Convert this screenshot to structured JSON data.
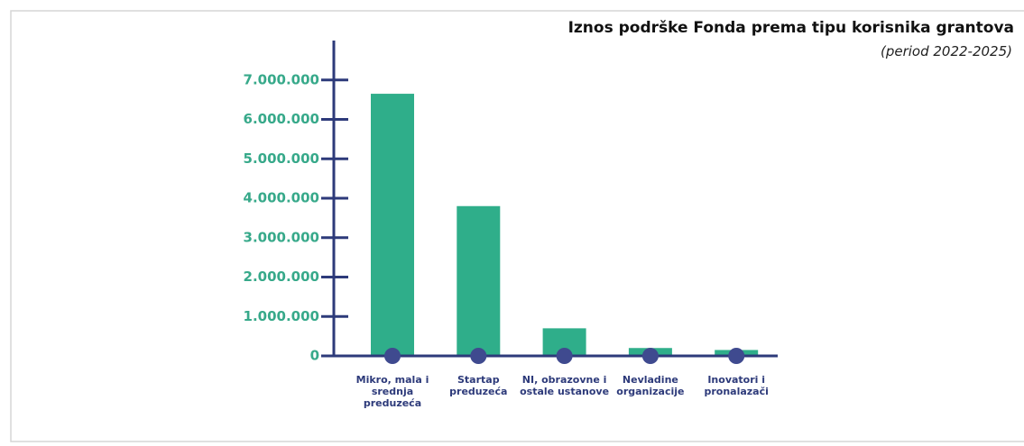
{
  "chart_data": {
    "type": "bar",
    "title": "Iznos podrške Fonda prema tipu korisnika grantova",
    "subtitle": "(period 2022-2025)",
    "categories": [
      "Mikro, mala i srednja preduzeća",
      "Startap preduzeća",
      "NI, obrazovne i ostale ustanove",
      "Nevladine organizacije",
      "Inovatori i pronalazači"
    ],
    "values": [
      6650000,
      3800000,
      700000,
      200000,
      150000
    ],
    "color": "#2fae8a",
    "ylim": [
      0,
      8000000
    ],
    "yticks": [
      0,
      {
        "value": 1000000,
        "label": "1.000.000"
      },
      {
        "value": 2000000,
        "label": "2.000.000"
      },
      {
        "value": 3000000,
        "label": "3.000.000"
      },
      {
        "value": 4000000,
        "label": "4.000.000"
      },
      {
        "value": 5000000,
        "label": "5.000.000"
      },
      {
        "value": 6000000,
        "label": "6.000.000"
      },
      {
        "value": 7000000,
        "label": "7.000.000"
      }
    ],
    "grid": false
  }
}
